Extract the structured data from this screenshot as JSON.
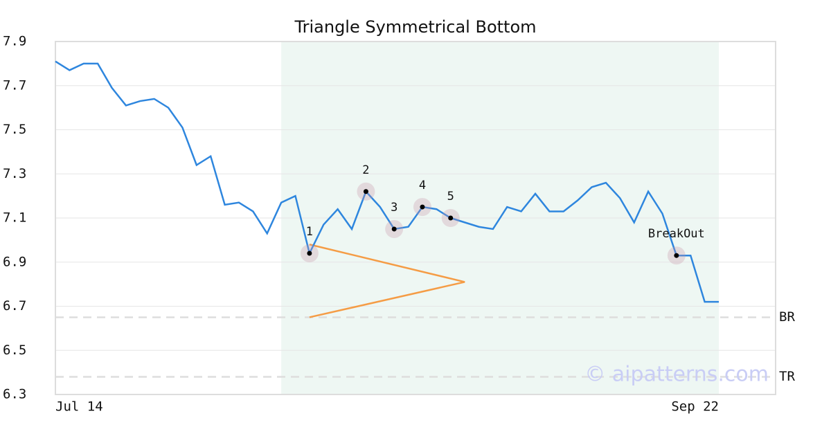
{
  "chart_data": {
    "type": "line",
    "title": "Triangle Symmetrical Bottom",
    "categories": [
      "Jul 14",
      null,
      null,
      null,
      null,
      null,
      null,
      null,
      null,
      null,
      null,
      null,
      null,
      null,
      null,
      null,
      null,
      null,
      null,
      null,
      null,
      null,
      null,
      null,
      null,
      null,
      null,
      null,
      null,
      null,
      null,
      null,
      null,
      null,
      null,
      null,
      null,
      null,
      null,
      null,
      null,
      null,
      null,
      null,
      null,
      null,
      null,
      "Sep 22"
    ],
    "values": [
      7.81,
      7.77,
      7.8,
      7.8,
      7.69,
      7.61,
      7.63,
      7.64,
      7.6,
      7.51,
      7.34,
      7.38,
      7.16,
      7.17,
      7.13,
      7.03,
      7.17,
      7.2,
      6.94,
      7.07,
      7.14,
      7.05,
      7.22,
      7.15,
      7.05,
      7.06,
      7.15,
      7.14,
      7.1,
      7.08,
      7.06,
      7.05,
      7.15,
      7.13,
      7.21,
      7.13,
      7.13,
      7.18,
      7.24,
      7.26,
      7.19,
      7.08,
      7.22,
      7.12,
      6.93,
      6.93,
      6.72,
      6.72
    ],
    "color": "#2e86de",
    "ylim": [
      6.3,
      7.9
    ],
    "yticks": [
      6.3,
      6.5,
      6.7,
      6.9,
      7.1,
      7.3,
      7.5,
      7.7,
      7.9
    ],
    "grid": true,
    "pattern_range": [
      16,
      47
    ],
    "pattern_color": "#eef7f3",
    "markers": [
      {
        "index": 18,
        "label": "1"
      },
      {
        "index": 22,
        "label": "2"
      },
      {
        "index": 24,
        "label": "3"
      },
      {
        "index": 26,
        "label": "4"
      },
      {
        "index": 28,
        "label": "5"
      },
      {
        "index": 44,
        "label": "BreakOut"
      }
    ],
    "triangle": {
      "x": [
        18,
        29,
        18
      ],
      "y": [
        6.98,
        6.81,
        6.65
      ],
      "color": "#f59c45"
    },
    "levels": [
      {
        "label": "BR",
        "value": 6.65
      },
      {
        "label": "TR",
        "value": 6.38
      }
    ],
    "watermark": "© aipatterns.com"
  }
}
